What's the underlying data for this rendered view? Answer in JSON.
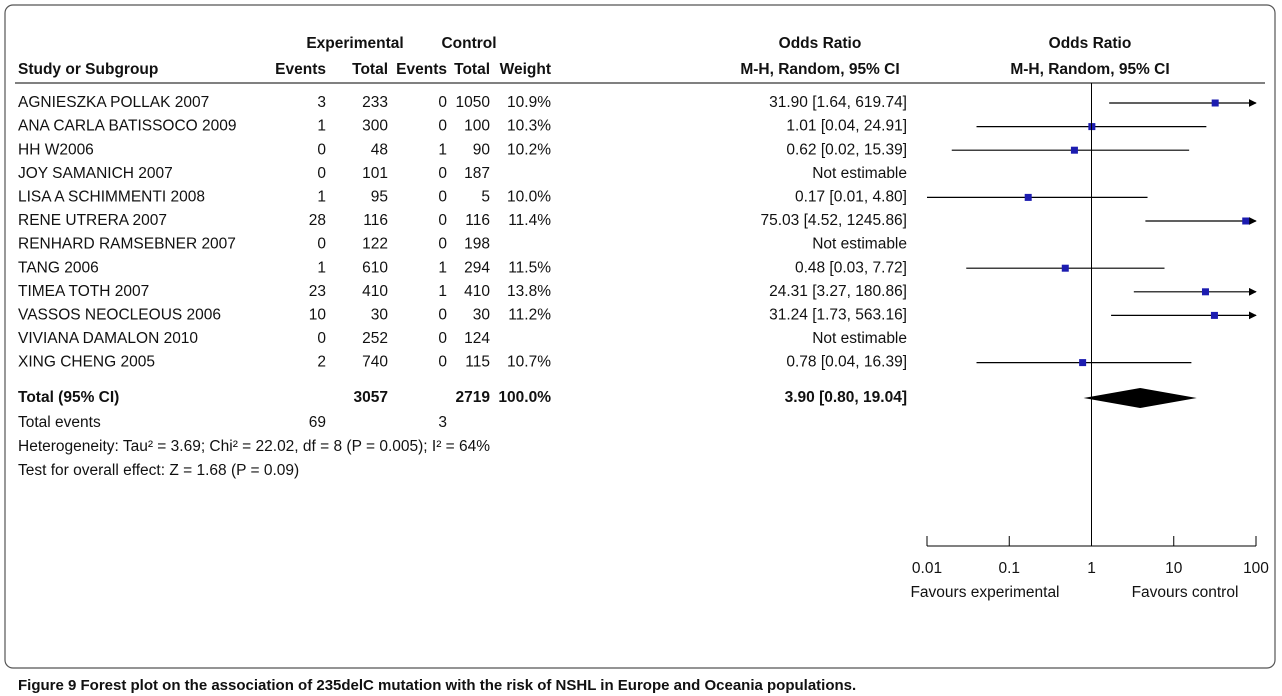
{
  "chart_data": {
    "type": "forest",
    "header_groups": [
      "Experimental",
      "Control",
      "Odds Ratio",
      "Odds Ratio"
    ],
    "columns": [
      "Study or Subgroup",
      "Events",
      "Total",
      "Events",
      "Total",
      "Weight",
      "M-H, Random, 95% CI",
      "M-H, Random, 95% CI"
    ],
    "rows": [
      [
        "AGNIESZKA POLLAK 2007",
        3,
        233,
        0,
        1050,
        "10.9%"
      ],
      [
        "ANA CARLA BATISSOCO 2009",
        1,
        300,
        0,
        100,
        "10.3%"
      ],
      [
        "HH W2006",
        0,
        48,
        1,
        90,
        "10.2%"
      ],
      [
        "JOY SAMANICH 2007",
        0,
        101,
        0,
        187,
        null
      ],
      [
        "LISA A SCHIMMENTI 2008",
        1,
        95,
        0,
        5,
        "10.0%"
      ],
      [
        "RENE UTRERA 2007",
        28,
        116,
        0,
        116,
        "11.4%"
      ],
      [
        "RENHARD RAMSEBNER 2007",
        0,
        122,
        0,
        198,
        null
      ],
      [
        "TANG 2006",
        1,
        610,
        1,
        294,
        "11.5%"
      ],
      [
        "TIMEA TOTH 2007",
        23,
        410,
        1,
        410,
        "13.8%"
      ],
      [
        "VASSOS NEOCLEOUS 2006",
        10,
        30,
        0,
        30,
        "11.2%"
      ],
      [
        "VIVIANA DAMALON 2010",
        0,
        252,
        0,
        124,
        null
      ],
      [
        "XING CHENG 2005",
        2,
        740,
        0,
        115,
        "10.7%"
      ]
    ],
    "values": [
      31.9,
      1.01,
      0.62,
      null,
      0.17,
      75.03,
      null,
      0.48,
      24.31,
      31.24,
      null,
      0.78
    ],
    "lower": [
      1.64,
      0.04,
      0.02,
      null,
      0.01,
      4.52,
      null,
      0.03,
      3.27,
      1.73,
      null,
      0.04
    ],
    "upper": [
      619.74,
      24.91,
      15.39,
      null,
      4.8,
      1245.86,
      null,
      7.72,
      180.86,
      563.16,
      null,
      16.39
    ],
    "value_labels": [
      "31.90 [1.64, 619.74]",
      "1.01 [0.04, 24.91]",
      "0.62 [0.02, 15.39]",
      "Not estimable",
      "0.17 [0.01, 4.80]",
      "75.03 [4.52, 1245.86]",
      "Not estimable",
      "0.48 [0.03, 7.72]",
      "24.31 [3.27, 180.86]",
      "31.24 [1.73, 563.16]",
      "Not estimable",
      "0.78 [0.04, 16.39]"
    ],
    "total": {
      "label": "Total (95% CI)",
      "exp_total": 3057,
      "ctrl_total": 2719,
      "weight": "100.0%",
      "value": 3.9,
      "lower": 0.8,
      "upper": 19.04,
      "value_label": "3.90 [0.80, 19.04]"
    },
    "total_events": {
      "label": "Total events",
      "exp": 69,
      "ctrl": 3
    },
    "heterogeneity": "Heterogeneity: Tau² = 3.69; Chi² = 22.02, df = 8 (P = 0.005); I² = 64%",
    "overall_effect": "Test for overall effect: Z = 1.68 (P = 0.09)",
    "x_labels": [
      "Favours experimental",
      "Favours control"
    ],
    "xlim": [
      0.01,
      100
    ],
    "xticks": [
      0.01,
      0.1,
      1,
      10,
      100
    ],
    "log_x": true,
    "color": "#1c1cb0",
    "caption": "Figure 9 Forest plot on the association of 235delC mutation with the risk of NSHL in Europe and Oceania populations."
  }
}
